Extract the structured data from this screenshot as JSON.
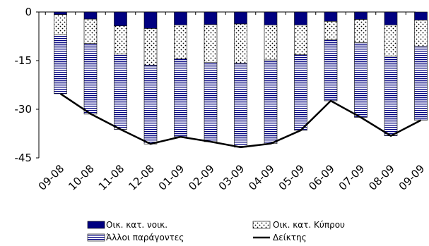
{
  "chart_data": {
    "type": "bar",
    "stacked": true,
    "categories": [
      "09-08",
      "10-08",
      "11-08",
      "12-08",
      "01-09",
      "02-09",
      "03-09",
      "04-09",
      "05-09",
      "06-09",
      "07-09",
      "08-09",
      "09-09"
    ],
    "series": [
      {
        "name": "Οικ. κατ. νοικ.",
        "kind": "bar",
        "pattern": "solid-navy",
        "color": "#000080",
        "values": [
          -0.8,
          -2.2,
          -4.3,
          -5.1,
          -4.0,
          -3.9,
          -3.7,
          -4.0,
          -4.0,
          -2.9,
          -2.3,
          -4.0,
          -2.5
        ]
      },
      {
        "name": "Οικ. κατ. Κύπρου",
        "kind": "bar",
        "pattern": "dots",
        "color": "#000000",
        "values": [
          -6.2,
          -7.5,
          -8.7,
          -11.3,
          -10.5,
          -11.6,
          -12.2,
          -10.8,
          -9.2,
          -5.6,
          -7.2,
          -9.6,
          -8.2
        ]
      },
      {
        "name": "Άλλοι παράγοντες",
        "kind": "bar",
        "pattern": "horizontal-lines",
        "color": "#000080",
        "values": [
          -18.2,
          -21.8,
          -23.2,
          -24.3,
          -24.0,
          -24.5,
          -25.8,
          -25.8,
          -23.3,
          -18.9,
          -23.0,
          -24.6,
          -22.7
        ]
      },
      {
        "name": "Δείκτης",
        "kind": "line",
        "color": "#000000",
        "values": [
          -25.2,
          -31.4,
          -36.2,
          -40.7,
          -38.5,
          -40.0,
          -41.7,
          -40.6,
          -36.5,
          -27.4,
          -32.5,
          -38.2,
          -33.4
        ]
      }
    ],
    "y_ticks": [
      0,
      -15,
      -30,
      -45
    ],
    "y_tick_labels": [
      "0",
      "-15",
      "-30",
      "-45"
    ],
    "ylim": [
      -45,
      0
    ],
    "grid": false,
    "legend_position": "bottom",
    "xlabel": "",
    "ylabel": "",
    "title": ""
  }
}
